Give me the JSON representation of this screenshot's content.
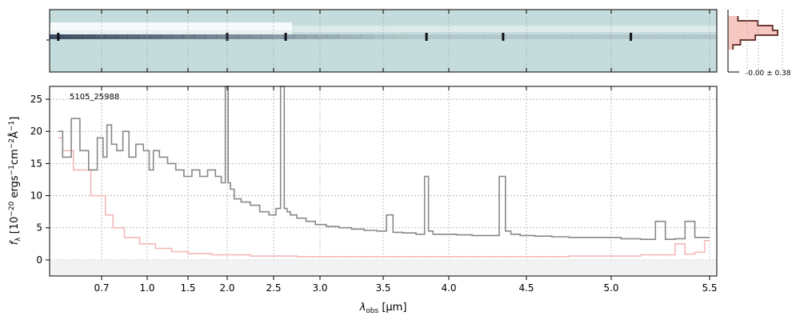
{
  "chart_data": [
    {
      "type": "heatmap",
      "panel": "2D spectrum",
      "description_colors": {
        "background": "#c5dcdc",
        "bright": "#ffffff",
        "dark": "#1a1a3a"
      },
      "xlim": [
        0.58,
        5.52
      ],
      "ylim": [
        -1,
        1
      ],
      "trace_row": "center",
      "bright_band": [
        0.58,
        2.7
      ]
    },
    {
      "type": "line",
      "panel": "1D spectrum",
      "label": "5105_25988",
      "xlabel": "λ_obs [μm]",
      "ylabel": "f_λ [10^-20 ergs^-1 cm^-2 Å^-1]",
      "xlim": [
        0.58,
        5.52
      ],
      "ylim": [
        -2.5,
        27
      ],
      "xscale": "piecewise-compressed",
      "xticks": [
        0.7,
        1.0,
        1.5,
        2.0,
        2.5,
        3.0,
        3.5,
        4.0,
        4.5,
        5.0,
        5.5
      ],
      "xtick_labels": [
        "0.7",
        "1.0",
        "1.5",
        "2.0",
        "2.5",
        "3.0",
        "3.5",
        "4.0",
        "4.5",
        "5.0",
        "5.5"
      ],
      "yticks": [
        0,
        5,
        10,
        15,
        20,
        25
      ],
      "ytick_labels": [
        "0",
        "5",
        "10",
        "15",
        "20",
        "25"
      ],
      "grid": true,
      "colors": {
        "flux": "#888888",
        "error": "#f4b8b8",
        "zero_band": "#f2f2f2"
      },
      "series": [
        {
          "kind": "flux",
          "x": [
            0.6,
            0.62,
            0.64,
            0.66,
            0.68,
            0.7,
            0.72,
            0.75,
            0.78,
            0.82,
            0.86,
            0.9,
            0.95,
            1.0,
            1.05,
            1.1,
            1.2,
            1.3,
            1.4,
            1.5,
            1.6,
            1.7,
            1.8,
            1.9,
            1.95,
            2.0,
            2.02,
            2.05,
            2.1,
            2.2,
            2.3,
            2.4,
            2.5,
            2.55,
            2.6,
            2.63,
            2.66,
            2.7,
            2.8,
            2.9,
            3.0,
            3.1,
            3.2,
            3.3,
            3.4,
            3.5,
            3.55,
            3.6,
            3.7,
            3.8,
            3.83,
            3.86,
            3.9,
            4.0,
            4.1,
            4.2,
            4.3,
            4.35,
            4.38,
            4.42,
            4.5,
            4.6,
            4.7,
            4.8,
            4.9,
            5.0,
            5.1,
            5.2,
            5.25,
            5.3,
            5.35,
            5.4,
            5.45,
            5.5
          ],
          "y": [
            20,
            16,
            22,
            17,
            14,
            19,
            16,
            21,
            18,
            17,
            20,
            16,
            18,
            17,
            14,
            17,
            16,
            15,
            14,
            13,
            14,
            13,
            14,
            13,
            12,
            27,
            12,
            11,
            9.5,
            9,
            8.5,
            7.5,
            7,
            8,
            27,
            8,
            7.5,
            7,
            6.5,
            6,
            5.5,
            5.2,
            5,
            4.8,
            4.6,
            4.5,
            7,
            4.3,
            4.2,
            4,
            13,
            4.5,
            4,
            4,
            3.9,
            3.8,
            3.8,
            13,
            4.5,
            4,
            3.8,
            3.7,
            3.6,
            3.5,
            3.5,
            3.5,
            3.3,
            3.2,
            6,
            3.2,
            3.3,
            6,
            3.5,
            3.5
          ]
        },
        {
          "kind": "error",
          "x": [
            0.6,
            0.62,
            0.65,
            0.7,
            0.75,
            0.8,
            0.9,
            1.0,
            1.2,
            1.4,
            1.6,
            2.0,
            2.5,
            3.0,
            3.5,
            4.0,
            4.5,
            5.0,
            5.3,
            5.35,
            5.4,
            5.45,
            5.5
          ],
          "y": [
            19,
            17,
            14,
            10,
            7,
            5,
            3.5,
            2.5,
            1.8,
            1.3,
            1.0,
            0.8,
            0.6,
            0.5,
            0.5,
            0.5,
            0.5,
            0.6,
            0.8,
            2.5,
            0.9,
            1.2,
            3.0
          ]
        }
      ]
    },
    {
      "type": "line",
      "panel": "spatial profile",
      "annotation": "-0.00 ± 0.38",
      "colors": {
        "profile": "#6b3a32",
        "fill": "#f7c7c2"
      },
      "profile": [
        0.2,
        0.6,
        0.9,
        1.0,
        0.55,
        0.25,
        0.1
      ]
    }
  ]
}
